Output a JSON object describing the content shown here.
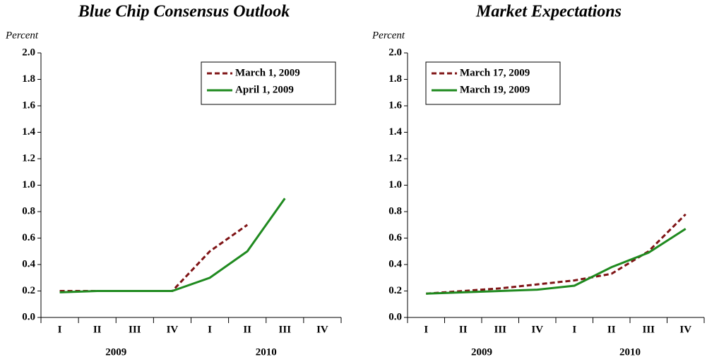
{
  "chart_data": [
    {
      "type": "line",
      "title": "Blue Chip Consensus Outlook",
      "ylabel": "Percent",
      "categories": [
        "I",
        "II",
        "III",
        "IV",
        "I",
        "II",
        "III",
        "IV"
      ],
      "groups": [
        "2009",
        "2010"
      ],
      "series": [
        {
          "name": "March 1, 2009",
          "color": "#7f1416",
          "linestyle": "dashed",
          "values": [
            0.2,
            0.2,
            0.2,
            0.2,
            0.5,
            0.7,
            null,
            null
          ]
        },
        {
          "name": "April 1, 2009",
          "color": "#1f8a1f",
          "linestyle": "solid",
          "values": [
            0.19,
            0.2,
            0.2,
            0.2,
            0.3,
            0.5,
            0.9,
            null
          ]
        }
      ],
      "ylim": [
        0,
        2
      ],
      "yticks": [
        {
          "value": 0,
          "label": "0.0"
        },
        0.2,
        0.4,
        0.6,
        0.8,
        {
          "value": 1,
          "label": "1.0"
        },
        1.2,
        1.4,
        1.6,
        1.8,
        {
          "value": 2,
          "label": "2.0"
        }
      ],
      "legend": "upper right"
    },
    {
      "type": "line",
      "title": "Market Expectations",
      "ylabel": "Percent",
      "categories": [
        "I",
        "II",
        "III",
        "IV",
        "I",
        "II",
        "III",
        "IV"
      ],
      "groups": [
        "2009",
        "2010"
      ],
      "series": [
        {
          "name": "March 17, 2009",
          "color": "#7f1416",
          "linestyle": "dashed",
          "values": [
            0.18,
            0.2,
            0.22,
            0.25,
            0.28,
            0.33,
            0.5,
            0.78
          ]
        },
        {
          "name": "March 19, 2009",
          "color": "#1f8a1f",
          "linestyle": "solid",
          "values": [
            0.18,
            0.19,
            0.2,
            0.21,
            0.24,
            0.38,
            0.49,
            0.67
          ]
        }
      ],
      "ylim": [
        0,
        2
      ],
      "yticks": [
        {
          "value": 0,
          "label": "0.0"
        },
        0.2,
        0.4,
        0.6,
        0.8,
        {
          "value": 1,
          "label": "1.0"
        },
        1.2,
        1.4,
        1.6,
        1.8,
        {
          "value": 2,
          "label": "2.0"
        }
      ],
      "legend": "upper left"
    }
  ]
}
